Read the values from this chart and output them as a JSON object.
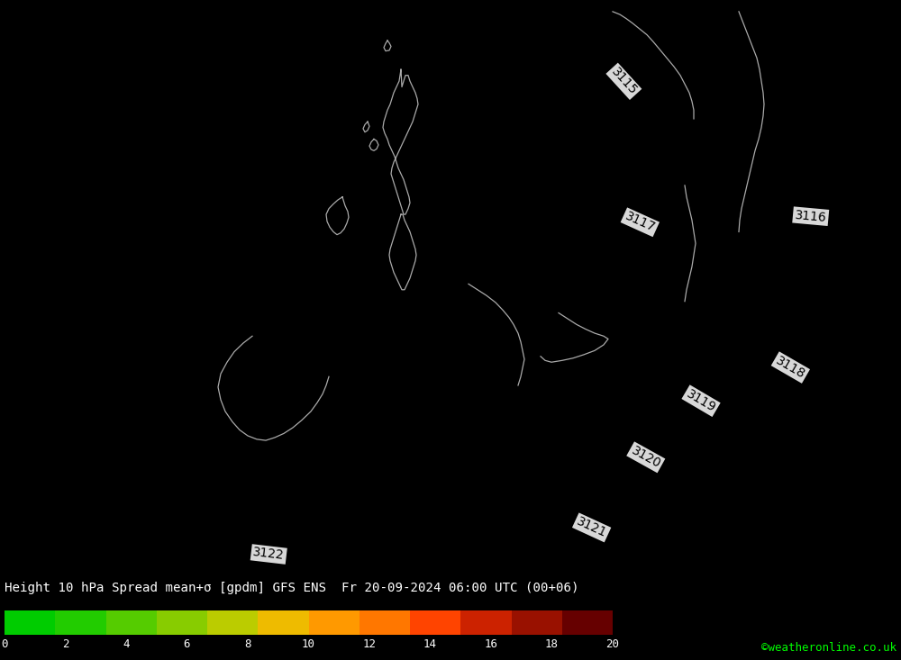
{
  "title_line": "Height 10 hPa Spread mean+σ [gpdm] GFS ENS  Fr 20-09-2024 06:00 UTC (00+06)",
  "colorbar_values": [
    0,
    2,
    4,
    6,
    8,
    10,
    12,
    14,
    16,
    18,
    20
  ],
  "colorbar_colors": [
    "#00cc00",
    "#22cc00",
    "#55cc00",
    "#88cc00",
    "#bbcc00",
    "#eebb00",
    "#ff9900",
    "#ff7700",
    "#ff4400",
    "#cc2200",
    "#991100",
    "#660000"
  ],
  "background_color": "#00ee00",
  "contour_color": "#000000",
  "coastline_color": "#aaaaaa",
  "label_bg": "#ccffcc",
  "copyright_text": "©weatheronline.co.uk",
  "copyright_color": "#00ff00",
  "fig_width": 10.0,
  "fig_height": 7.33
}
